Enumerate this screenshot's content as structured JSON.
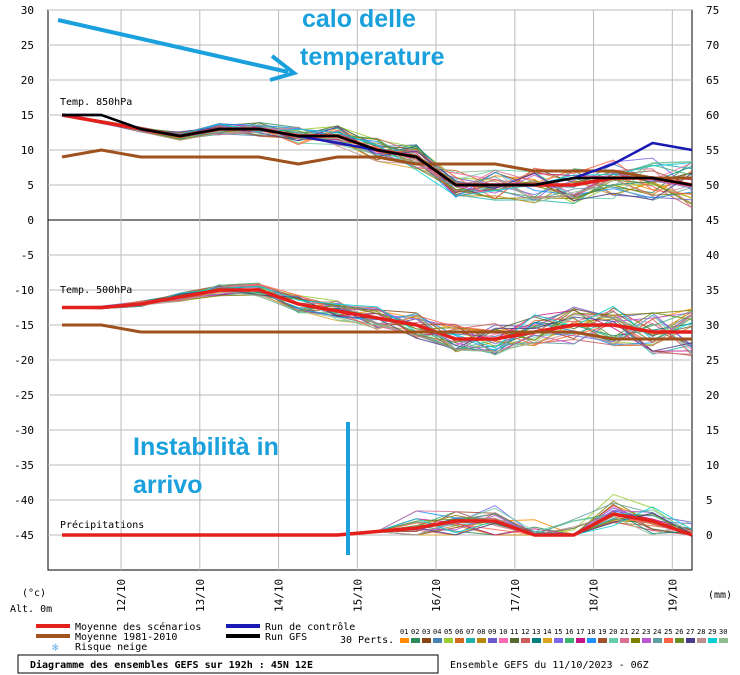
{
  "chart_data": {
    "type": "line",
    "title": "Diagramme des ensembles GEFS sur 192h : 45N 12E",
    "subtitle": "Ensemble GEFS du 11/10/2023 - 06Z",
    "left_axis": {
      "unit": "(°c)",
      "altitude": "Alt. 0m",
      "range": [
        -45,
        30
      ],
      "ticks": [
        "30",
        "25",
        "20",
        "15",
        "10",
        "5",
        "0",
        "-5",
        "-10",
        "-15",
        "-20",
        "-25",
        "-30",
        "-35",
        "-40",
        "-45"
      ]
    },
    "right_axis": {
      "unit": "(mm)",
      "range": [
        0,
        75
      ],
      "ticks": [
        "75",
        "70",
        "65",
        "60",
        "55",
        "50",
        "45",
        "40",
        "35",
        "30",
        "25",
        "20",
        "15",
        "10",
        "5",
        "0"
      ]
    },
    "x_labels": [
      "12/10",
      "13/10",
      "14/10",
      "15/10",
      "16/10",
      "17/10",
      "18/10",
      "19/10"
    ],
    "x_range_hours": [
      0,
      192
    ],
    "panels": [
      {
        "name": "Temp. 850hPa",
        "y_range": [
          0,
          30
        ]
      },
      {
        "name": "Temp. 500hPa",
        "y_range": [
          -20,
          -10
        ]
      },
      {
        "name": "Précipitations",
        "y_range": [
          0,
          20
        ]
      }
    ],
    "series": [
      {
        "name": "Moyenne des scénarios",
        "color": "#e3201b",
        "panel": "Temp. 850hPa",
        "x": [
          0,
          12,
          24,
          36,
          48,
          60,
          72,
          84,
          96,
          108,
          120,
          132,
          144,
          156,
          168,
          180,
          192
        ],
        "values": [
          15,
          14,
          13,
          12,
          13,
          13,
          12,
          12,
          10,
          9,
          5,
          5,
          5,
          5,
          6,
          6,
          5
        ]
      },
      {
        "name": "Moyenne 1981-2010",
        "color": "#a0521e",
        "panel": "Temp. 850hPa",
        "x": [
          0,
          12,
          24,
          36,
          48,
          60,
          72,
          84,
          96,
          108,
          120,
          132,
          144,
          156,
          168,
          180,
          192
        ],
        "values": [
          9,
          10,
          9,
          9,
          9,
          9,
          8,
          9,
          9,
          8,
          8,
          8,
          7,
          7,
          7,
          6,
          6
        ]
      },
      {
        "name": "Run de contrôle",
        "color": "#1919b4",
        "panel": "Temp. 850hPa",
        "x": [
          0,
          12,
          24,
          36,
          48,
          60,
          72,
          84,
          96,
          108,
          120,
          132,
          144,
          156,
          168,
          180,
          192
        ],
        "values": [
          15,
          15,
          13,
          12,
          13,
          13,
          12,
          11,
          10,
          9,
          5,
          5,
          5,
          6,
          8,
          11,
          10
        ]
      },
      {
        "name": "Run GFS",
        "color": "#000000",
        "panel": "Temp. 850hPa",
        "x": [
          0,
          12,
          24,
          36,
          48,
          60,
          72,
          84,
          96,
          108,
          120,
          132,
          144,
          156,
          168,
          180,
          192
        ],
        "values": [
          15,
          15,
          13,
          12,
          13,
          13,
          12,
          12,
          10,
          9,
          5,
          5,
          5,
          6,
          6,
          6,
          5
        ]
      },
      {
        "name": "Moyenne des scénarios",
        "color": "#e3201b",
        "panel": "Temp. 500hPa",
        "x": [
          0,
          12,
          24,
          36,
          48,
          60,
          72,
          84,
          96,
          108,
          120,
          132,
          144,
          156,
          168,
          180,
          192
        ],
        "values": [
          -12.5,
          -12.5,
          -12,
          -11,
          -10,
          -10,
          -12,
          -13,
          -14,
          -15,
          -17,
          -17,
          -16,
          -15,
          -15,
          -16,
          -16
        ]
      },
      {
        "name": "Moyenne 1981-2010",
        "color": "#a0521e",
        "panel": "Temp. 500hPa",
        "x": [
          0,
          12,
          24,
          36,
          48,
          60,
          72,
          84,
          96,
          108,
          120,
          132,
          144,
          156,
          168,
          180,
          192
        ],
        "values": [
          -15,
          -15,
          -16,
          -16,
          -16,
          -16,
          -16,
          -16,
          -16,
          -16,
          -16,
          -16,
          -16,
          -16,
          -17,
          -17,
          -17
        ]
      },
      {
        "name": "Moyenne des scénarios",
        "color": "#e3201b",
        "panel": "Précipitations",
        "x": [
          0,
          12,
          24,
          36,
          48,
          60,
          72,
          84,
          96,
          108,
          120,
          132,
          144,
          156,
          168,
          180,
          192
        ],
        "values": [
          0,
          0,
          0,
          0,
          0,
          0,
          0,
          0,
          0.5,
          1,
          2,
          2,
          0,
          0,
          3,
          2,
          0
        ]
      }
    ],
    "legend": [
      {
        "label": "Moyenne des scénarios",
        "color": "#e3201b"
      },
      {
        "label": "Moyenne 1981-2010",
        "color": "#a0521e"
      },
      {
        "label": "Risque neige",
        "color": "#6aaee6"
      },
      {
        "label": "Run de contrôle",
        "color": "#1919b4"
      },
      {
        "label": "Run GFS",
        "color": "#000000"
      }
    ],
    "perturbations": {
      "label": "30 Perts.",
      "ids": [
        "01",
        "02",
        "03",
        "04",
        "05",
        "06",
        "07",
        "08",
        "09",
        "10",
        "11",
        "12",
        "13",
        "14",
        "15",
        "16",
        "17",
        "18",
        "19",
        "20",
        "21",
        "22",
        "23",
        "24",
        "25",
        "26",
        "27",
        "28",
        "29",
        "30"
      ],
      "colors": [
        "#ff8c00",
        "#2e8b57",
        "#8b4513",
        "#4682b4",
        "#9acd32",
        "#d2691e",
        "#20b2aa",
        "#b8860b",
        "#6a5acd",
        "#ff69b4",
        "#556b2f",
        "#cd5c5c",
        "#008080",
        "#daa520",
        "#7b68ee",
        "#3cb371",
        "#c71585",
        "#1e90ff",
        "#a0522d",
        "#66cdaa",
        "#db7093",
        "#808000",
        "#ba55d3",
        "#5f9ea0",
        "#ff6347",
        "#6b8e23",
        "#483d8b",
        "#bc8f8f",
        "#00ced1",
        "#8fbc8f"
      ]
    },
    "annotations": [
      {
        "text": "calo delle",
        "color": "#1aa0dc"
      },
      {
        "text": "temperature",
        "color": "#1aa0dc"
      },
      {
        "text": "Instabilità in",
        "color": "#1aa0dc"
      },
      {
        "text": "arrivo",
        "color": "#1aa0dc"
      }
    ],
    "grid": true
  }
}
